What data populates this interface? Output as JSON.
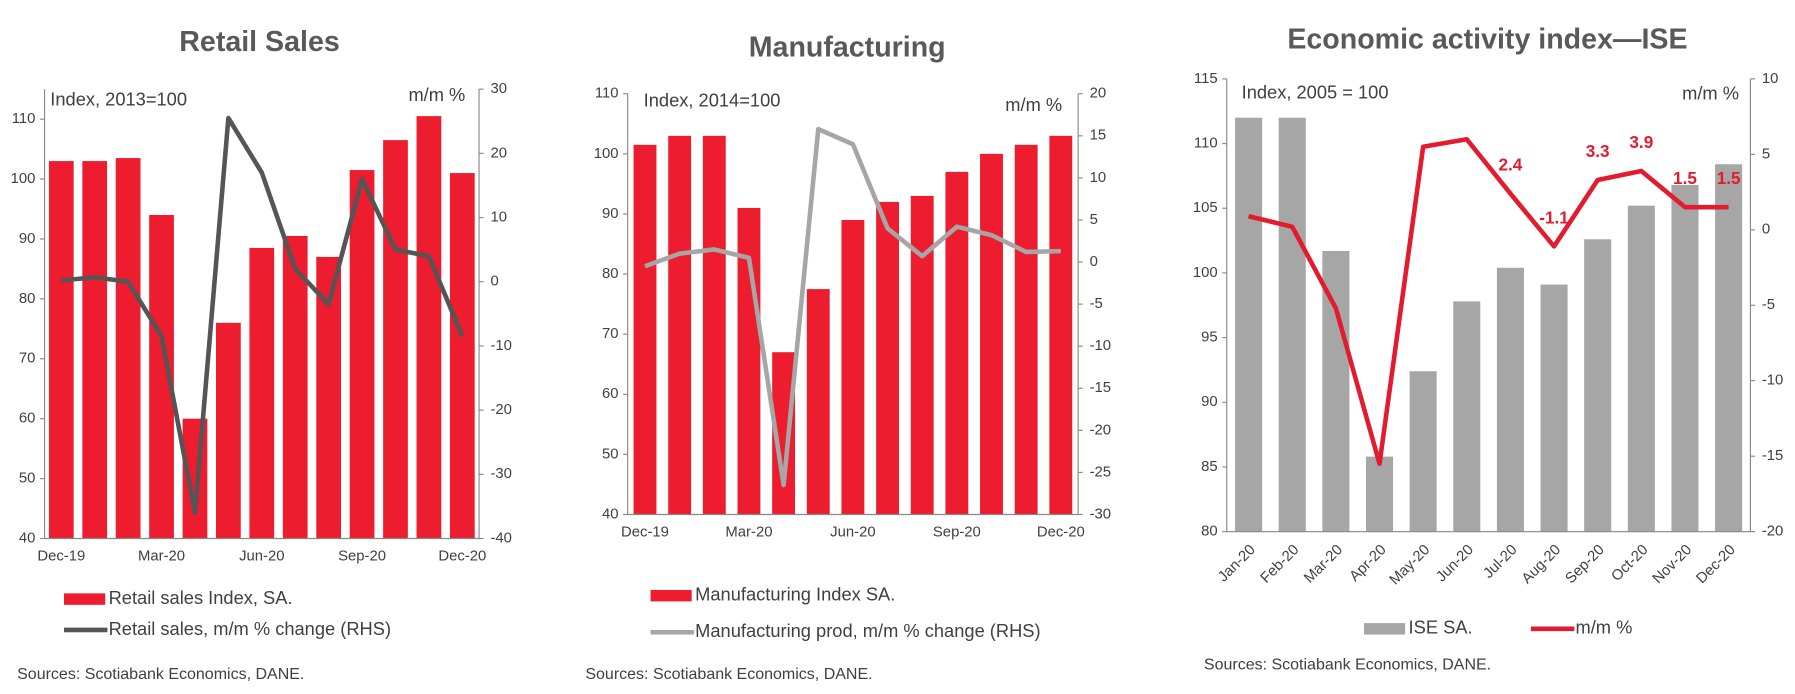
{
  "chart_data": [
    {
      "type": "combo",
      "title": "Retail Sales",
      "ylabel": "Index, 2013=100",
      "y2label": "m/m %",
      "categories": [
        "Dec-19",
        null,
        null,
        "Mar-20",
        null,
        null,
        "Jun-20",
        null,
        null,
        "Sep-20",
        null,
        null,
        "Dec-20"
      ],
      "series": [
        {
          "name": "Retail sales Index, SA.",
          "kind": "bar",
          "color": "#ed1c2e",
          "values": [
            103,
            103,
            103.5,
            94,
            60,
            76,
            88.5,
            90.5,
            87,
            101.5,
            106.5,
            110.5,
            101
          ]
        },
        {
          "name": "Retail sales, m/m % change (RHS)",
          "kind": "line",
          "axis": "y2",
          "color": "#555555",
          "values": [
            0.2,
            0.7,
            0,
            -8.5,
            -36,
            25.5,
            17,
            2,
            -3.5,
            16,
            5,
            4,
            -8.5
          ]
        }
      ],
      "ylim": [
        40,
        115
      ],
      "yticks": [
        40,
        50,
        60,
        70,
        80,
        90,
        100,
        110
      ],
      "y2lim": [
        -40,
        30
      ],
      "y2ticks": [
        -40,
        -30,
        -20,
        -10,
        0,
        10,
        20,
        30
      ],
      "source": "Sources: Scotiabank Economics, DANE."
    },
    {
      "type": "combo",
      "title": "Manufacturing",
      "ylabel": "Index, 2014=100",
      "y2label": "m/m %",
      "categories": [
        "Dec-19",
        null,
        null,
        "Mar-20",
        null,
        null,
        "Jun-20",
        null,
        null,
        "Sep-20",
        null,
        null,
        "Dec-20"
      ],
      "series": [
        {
          "name": "Manufacturing Index SA.",
          "kind": "bar",
          "color": "#ed1c2e",
          "values": [
            101.5,
            103,
            103,
            91,
            67,
            77.5,
            89,
            92,
            93,
            97,
            100,
            101.5,
            103
          ]
        },
        {
          "name": "Manufacturing prod, m/m % change (RHS)",
          "kind": "line",
          "axis": "y2",
          "color": "#a6a6a6",
          "values": [
            -0.5,
            1,
            1.5,
            0.5,
            -26.5,
            15.8,
            14,
            4,
            0.7,
            4.2,
            3.2,
            1.2,
            1.3
          ]
        }
      ],
      "ylim": [
        40,
        110
      ],
      "yticks": [
        40,
        50,
        60,
        70,
        80,
        90,
        100,
        110
      ],
      "y2lim": [
        -30,
        20
      ],
      "y2ticks": [
        -30,
        -25,
        -20,
        -15,
        -10,
        -5,
        0,
        5,
        10,
        15,
        20
      ],
      "source": "Sources: Scotiabank Economics, DANE."
    },
    {
      "type": "combo",
      "title": "Economic activity index—ISE",
      "ylabel": "Index, 2005 = 100",
      "y2label": "m/m %",
      "categories": [
        "Jan-20",
        "Feb-20",
        "Mar-20",
        "Apr-20",
        "May-20",
        "Jun-20",
        "Jul-20",
        "Aug-20",
        "Sep-20",
        "Oct-20",
        "Nov-20",
        "Dec-20"
      ],
      "series": [
        {
          "name": "ISE SA.",
          "kind": "bar",
          "color": "#a6a6a6",
          "values": [
            112,
            112,
            101.7,
            85.8,
            92.4,
            97.8,
            100.4,
            99.1,
            102.6,
            105.2,
            106.8,
            108.4
          ]
        },
        {
          "name": "m/m %",
          "kind": "line",
          "axis": "y2",
          "color": "#e31b2f",
          "values": [
            0.9,
            0.2,
            -5.2,
            -15.5,
            5.5,
            6,
            2.4,
            -1.1,
            3.3,
            3.9,
            1.5,
            1.5
          ],
          "value_labels": [
            null,
            null,
            null,
            null,
            null,
            null,
            "2.4",
            "-1.1",
            "3.3",
            "3.9",
            "1.5",
            "1.5"
          ]
        }
      ],
      "ylim": [
        80,
        115
      ],
      "yticks": [
        80,
        85,
        90,
        95,
        100,
        105,
        110,
        115
      ],
      "y2lim": [
        -20,
        10
      ],
      "y2ticks": [
        -20,
        -15,
        -10,
        -5,
        0,
        5,
        10
      ],
      "source": "Sources: Scotiabank Economics, DANE."
    }
  ]
}
